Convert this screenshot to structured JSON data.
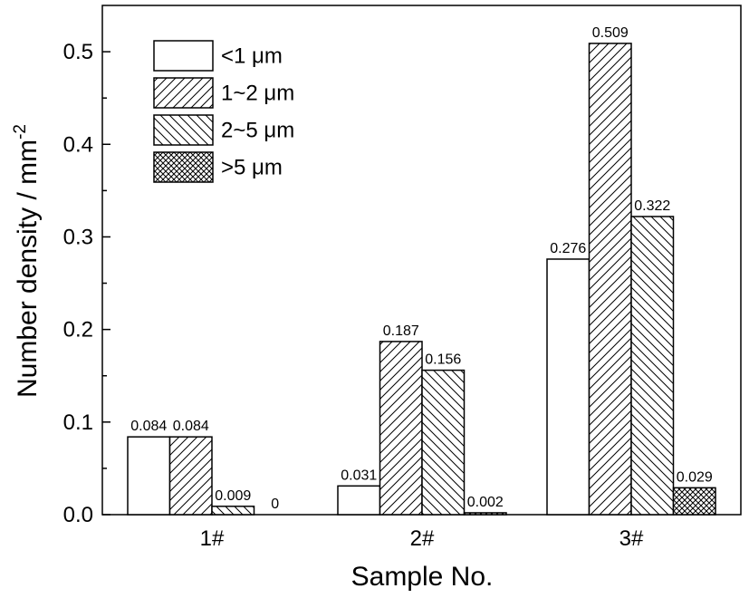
{
  "chart_data": {
    "type": "bar",
    "categories": [
      "1#",
      "2#",
      "3#"
    ],
    "series": [
      {
        "name": "<1 μm",
        "pattern": "none",
        "values": [
          0.084,
          0.031,
          0.276
        ]
      },
      {
        "name": "1~2 μm",
        "pattern": "diag-up",
        "values": [
          0.084,
          0.187,
          0.509
        ]
      },
      {
        "name": "2~5 μm",
        "pattern": "diag-down",
        "values": [
          0.009,
          0.156,
          0.322
        ]
      },
      {
        "name": ">5 μm",
        "pattern": "crosshatch",
        "values": [
          0,
          0.002,
          0.029
        ]
      }
    ],
    "data_labels": [
      [
        "0.084",
        "0.031",
        "0.276"
      ],
      [
        "0.084",
        "0.187",
        "0.509"
      ],
      [
        "0.009",
        "0.156",
        "0.322"
      ],
      [
        "0",
        "0.002",
        "0.029"
      ]
    ],
    "xlabel": "Sample No.",
    "ylabel": "Number density / mm",
    "ylabel_superscript": "-2",
    "ylim": [
      0,
      0.55
    ],
    "yticks": [
      "0.0",
      "0.1",
      "0.2",
      "0.3",
      "0.4",
      "0.5"
    ],
    "grid": false,
    "legend_position": "top-left",
    "colors": {
      "bar_fill": "#ffffff",
      "bar_edge": "#000000",
      "axis": "#000000"
    }
  }
}
